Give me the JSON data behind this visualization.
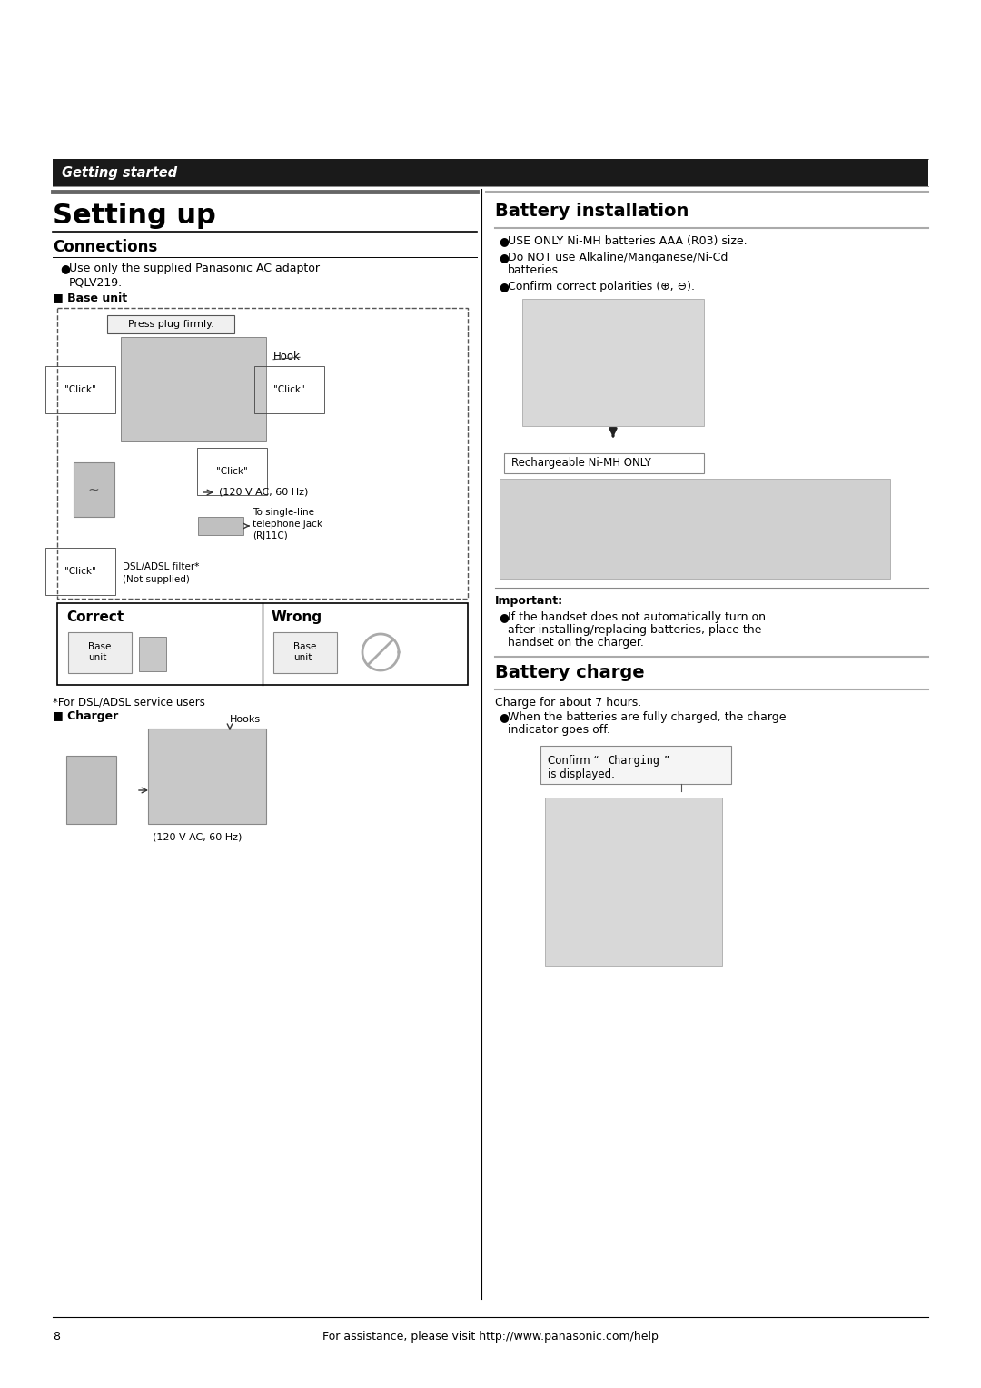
{
  "bg_color": "#ffffff",
  "fig_w": 10.8,
  "fig_h": 15.28,
  "dpi": 100,
  "header_bar_color": "#1a1a1a",
  "header_text": "Getting started",
  "header_text_color": "#ffffff",
  "gray_rule_color": "#777777",
  "black_rule_color": "#000000",
  "left_title": "Setting up",
  "connections_title": "Connections",
  "battery_installation_title": "Battery installation",
  "battery_charge_title": "Battery charge",
  "conn_bullet": "Use only the supplied Panasonic AC adaptor\nPQLV219.",
  "base_unit_label": "Base unit",
  "press_plug_label": "Press plug firmly.",
  "hook_label": "Hook",
  "click1": "\"Click\"",
  "click2": "\"Click\"",
  "click3": "\"Click\"",
  "click4": "\"Click\"",
  "ac_label": "(120 V AC, 60 Hz)",
  "single_line_1": "To single-line",
  "single_line_2": "telephone jack",
  "single_line_3": "(RJ11C)",
  "dsl_1": "DSL/ADSL filter*",
  "dsl_2": "(Not supplied)",
  "correct_label": "Correct",
  "wrong_label": "Wrong",
  "base_unit_text": "Base\nunit",
  "dsl_note": "*For DSL/ADSL service users",
  "charger_label": "Charger",
  "hooks_label": "Hooks",
  "charger_ac": "(120 V AC, 60 Hz)",
  "batt_bullet1": "USE ONLY Ni-MH batteries AAA (R03) size.",
  "batt_bullet2a": "Do NOT use Alkaline/Manganese/Ni-Cd",
  "batt_bullet2b": "batteries.",
  "batt_bullet3": "Confirm correct polarities (⊕, ⊖).",
  "rechargeable_label": "Rechargeable Ni-MH ONLY",
  "important_label": "Important:",
  "imp_bullet1": "If the handset does not automatically turn on",
  "imp_bullet2": "after installing/replacing batteries, place the",
  "imp_bullet3": "handset on the charger.",
  "charge_body": "Charge for about 7 hours.",
  "charge_bullet1": "When the batteries are fully charged, the charge",
  "charge_bullet2": "indicator goes off.",
  "confirm_1": "Confirm “Charging”",
  "confirm_mono": "Charging",
  "confirm_2": "is displayed.",
  "footer_page": "8",
  "footer_text": "For assistance, please visit http://www.panasonic.com/help"
}
